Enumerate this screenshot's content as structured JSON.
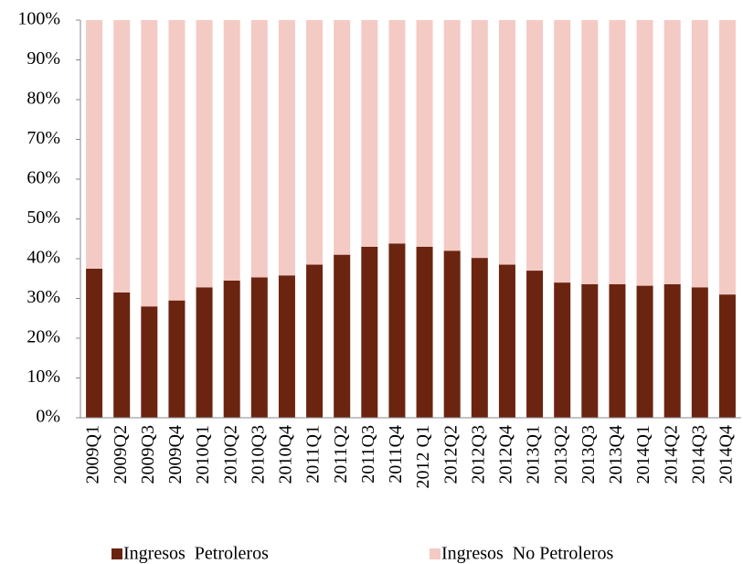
{
  "chart_data": {
    "type": "stacked_bar",
    "categories": [
      "2009Q1",
      "2009Q2",
      "2009Q3",
      "2009Q4",
      "2010Q1",
      "2010Q2",
      "2010Q3",
      "2010Q4",
      "2011Q1",
      "2011Q2",
      "2011Q3",
      "2011Q4",
      "2012 Q1",
      "2012Q2",
      "2012Q3",
      "2012Q4",
      "2013Q1",
      "2013Q2",
      "2013Q3",
      "2013Q4",
      "2014Q1",
      "2014Q2",
      "2014Q3",
      "2014Q4"
    ],
    "series": [
      {
        "name": "Ingresos  Petroleros",
        "color": "#6b2410",
        "values": [
          37.5,
          31.5,
          28,
          29.5,
          32.8,
          34.5,
          35.3,
          35.8,
          38.5,
          41,
          43,
          43.8,
          43,
          42,
          40.2,
          38.5,
          37,
          34,
          33.6,
          33.6,
          33.2,
          33.6,
          32.8,
          31
        ]
      },
      {
        "name": "Ingresos  No Petroleros",
        "color": "#f4cac4",
        "values": [
          62.5,
          68.5,
          72,
          70.5,
          67.2,
          65.5,
          64.7,
          64.2,
          61.5,
          59,
          57,
          56.2,
          57,
          58,
          59.8,
          61.5,
          63,
          66,
          66.4,
          66.4,
          66.8,
          66.4,
          67.2,
          69
        ]
      }
    ],
    "ylim": [
      0,
      100
    ],
    "yticks": [
      {
        "value": 0,
        "label": "0%"
      },
      {
        "value": 10,
        "label": "10%"
      },
      {
        "value": 20,
        "label": "20%"
      },
      {
        "value": 30,
        "label": "30%"
      },
      {
        "value": 40,
        "label": "40%"
      },
      {
        "value": 50,
        "label": "50%"
      },
      {
        "value": 60,
        "label": "60%"
      },
      {
        "value": 70,
        "label": "70%"
      },
      {
        "value": 80,
        "label": "80%"
      },
      {
        "value": 90,
        "label": "90%"
      },
      {
        "value": 100,
        "label": "100%"
      }
    ],
    "grid": false,
    "legend": "bottom"
  }
}
